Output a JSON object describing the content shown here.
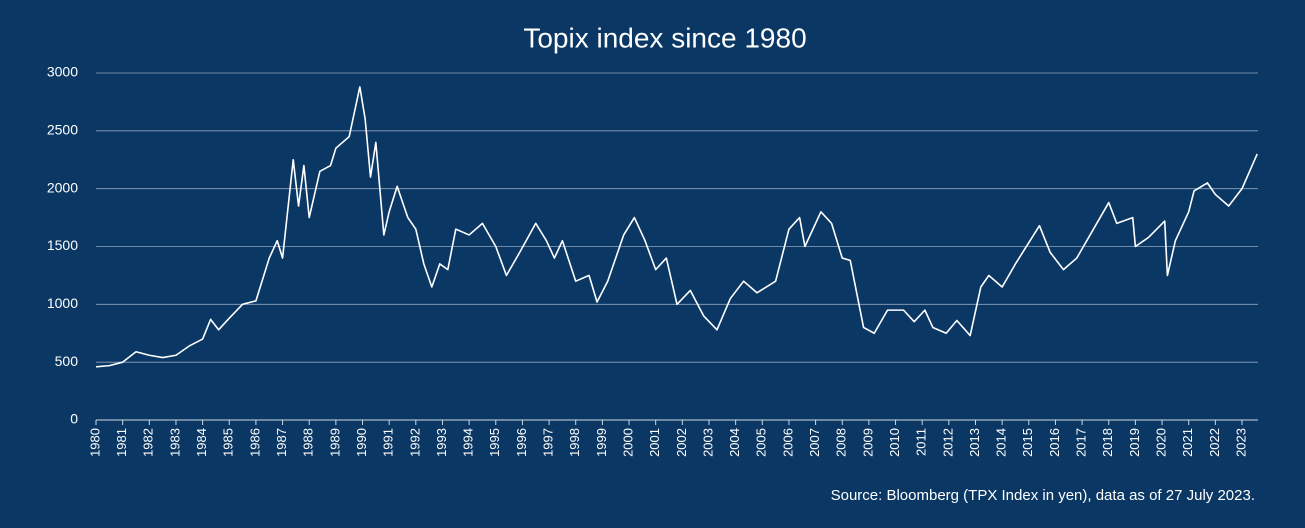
{
  "chart_data": {
    "type": "line",
    "title": "Topix index since 1980",
    "source": "Source: Bloomberg (TPX Index in yen), data as of 27 July 2023.",
    "x": [
      1980,
      1980.5,
      1981,
      1981.5,
      1982,
      1982.5,
      1983,
      1983.5,
      1984,
      1984.3,
      1984.6,
      1985,
      1985.5,
      1986,
      1986.5,
      1986.8,
      1987,
      1987.4,
      1987.6,
      1987.8,
      1988,
      1988.4,
      1988.8,
      1989,
      1989.5,
      1989.9,
      1990.1,
      1990.3,
      1990.5,
      1990.8,
      1991,
      1991.3,
      1991.7,
      1992,
      1992.3,
      1992.6,
      1992.9,
      1993.2,
      1993.5,
      1994,
      1994.5,
      1995,
      1995.4,
      1995.9,
      1996.5,
      1996.9,
      1997.2,
      1997.5,
      1998,
      1998.5,
      1998.8,
      1999.2,
      1999.8,
      2000.2,
      2000.6,
      2001,
      2001.4,
      2001.8,
      2002.3,
      2002.8,
      2003.3,
      2003.8,
      2004.3,
      2004.8,
      2005.5,
      2006,
      2006.4,
      2006.6,
      2007.2,
      2007.6,
      2008,
      2008.3,
      2008.8,
      2009.2,
      2009.7,
      2010.3,
      2010.7,
      2011.1,
      2011.4,
      2011.9,
      2012.3,
      2012.8,
      2013.2,
      2013.5,
      2014,
      2014.5,
      2015.4,
      2015.8,
      2016.3,
      2016.8,
      2017.3,
      2018,
      2018.3,
      2018.9,
      2019,
      2019.5,
      2020.1,
      2020.2,
      2020.5,
      2021,
      2021.2,
      2021.7,
      2022,
      2022.5,
      2023,
      2023.57
    ],
    "series": [
      {
        "name": "Topix",
        "color": "#ffffff",
        "values": [
          460,
          470,
          500,
          590,
          560,
          540,
          560,
          640,
          700,
          870,
          780,
          880,
          1000,
          1030,
          1400,
          1550,
          1400,
          2250,
          1850,
          2200,
          1750,
          2150,
          2200,
          2350,
          2450,
          2880,
          2600,
          2100,
          2400,
          1600,
          1800,
          2020,
          1750,
          1650,
          1350,
          1150,
          1350,
          1300,
          1650,
          1600,
          1700,
          1500,
          1250,
          1450,
          1700,
          1550,
          1400,
          1550,
          1200,
          1250,
          1020,
          1200,
          1600,
          1750,
          1550,
          1300,
          1400,
          1000,
          1120,
          900,
          780,
          1050,
          1200,
          1100,
          1200,
          1650,
          1750,
          1500,
          1800,
          1700,
          1400,
          1380,
          800,
          750,
          950,
          950,
          850,
          950,
          800,
          750,
          860,
          730,
          1150,
          1250,
          1150,
          1350,
          1680,
          1450,
          1300,
          1400,
          1600,
          1880,
          1700,
          1750,
          1500,
          1580,
          1720,
          1250,
          1550,
          1800,
          1980,
          2050,
          1950,
          1850,
          2000,
          2300
        ]
      }
    ],
    "xlim": [
      1980,
      2023.6
    ],
    "xticks": [
      1980,
      1981,
      1982,
      1983,
      1984,
      1985,
      1986,
      1987,
      1988,
      1989,
      1990,
      1991,
      1992,
      1993,
      1994,
      1995,
      1996,
      1997,
      1998,
      1999,
      2000,
      2001,
      2002,
      2003,
      2004,
      2005,
      2006,
      2007,
      2008,
      2009,
      2010,
      2011,
      2012,
      2013,
      2014,
      2015,
      2016,
      2017,
      2018,
      2019,
      2020,
      2021,
      2022,
      2023
    ],
    "ylim": [
      0,
      3000
    ],
    "yticks": [
      0,
      500,
      1000,
      1500,
      2000,
      2500,
      3000
    ],
    "grid": true
  }
}
